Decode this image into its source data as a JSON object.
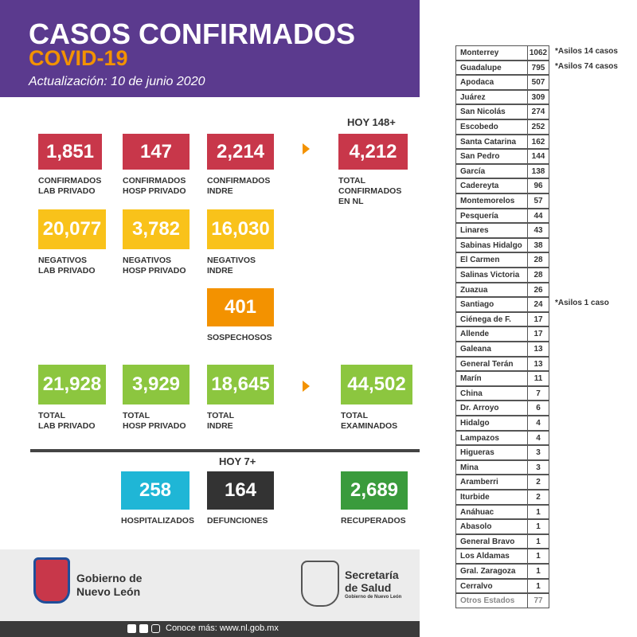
{
  "header": {
    "title": "CASOS CONFIRMADOS",
    "subtitle": "COVID-19",
    "update": "Actualización: 10 de junio 2020"
  },
  "headings": [
    "HOY 148+",
    "HOY 7+"
  ],
  "stats": [
    {
      "value": "1,851",
      "label": [
        "CONFIRMADOS",
        "LAB PRIVADO"
      ]
    },
    {
      "value": "147",
      "label": [
        "CONFIRMADOS",
        "HOSP PRIVADO"
      ]
    },
    {
      "value": "2,214",
      "label": [
        "CONFIRMADOS",
        "INDRE"
      ]
    },
    {
      "value": "4,212",
      "label": [
        "TOTAL",
        "CONFIRMADOS",
        "EN NL"
      ]
    },
    {
      "value": "20,077",
      "label": [
        "NEGATIVOS",
        "LAB PRIVADO"
      ]
    },
    {
      "value": "3,782",
      "label": [
        "NEGATIVOS",
        "HOSP PRIVADO"
      ]
    },
    {
      "value": "16,030",
      "label": [
        "NEGATIVOS",
        "INDRE"
      ]
    },
    {
      "value": "401",
      "label": [
        "SOSPECHOSOS"
      ]
    },
    {
      "value": "21,928",
      "label": [
        "TOTAL",
        "LAB PRIVADO"
      ]
    },
    {
      "value": "3,929",
      "label": [
        "TOTAL",
        "HOSP PRIVADO"
      ]
    },
    {
      "value": "18,645",
      "label": [
        "TOTAL",
        "INDRE"
      ]
    },
    {
      "value": "44,502",
      "label": [
        "TOTAL",
        "EXAMINADOS"
      ]
    },
    {
      "value": "258",
      "label": [
        "HOSPITALIZADOS"
      ]
    },
    {
      "value": "164",
      "label": [
        "DEFUNCIONES"
      ]
    },
    {
      "value": "2,689",
      "label": [
        "RECUPERADOS"
      ]
    }
  ],
  "table": {
    "rows": [
      [
        "Monterrey",
        1062,
        "*Asilos 14 casos"
      ],
      [
        "Guadalupe",
        795,
        "*Asilos 74 casos"
      ],
      [
        "Apodaca",
        507
      ],
      [
        "Juárez",
        309
      ],
      [
        "San Nicolás",
        274
      ],
      [
        "Escobedo",
        252
      ],
      [
        "Santa Catarina",
        162
      ],
      [
        "San Pedro",
        144
      ],
      [
        "García",
        138
      ],
      [
        "Cadereyta",
        96
      ],
      [
        "Montemorelos",
        57
      ],
      [
        "Pesquería",
        44
      ],
      [
        "Linares",
        43
      ],
      [
        "Sabinas Hidalgo",
        38
      ],
      [
        "El Carmen",
        28
      ],
      [
        "Salinas Victoria",
        28
      ],
      [
        "Zuazua",
        26
      ],
      [
        "Santiago",
        24,
        "*Asilos 1 caso"
      ],
      [
        "Ciénega de F.",
        17
      ],
      [
        "Allende",
        17
      ],
      [
        "Galeana",
        13
      ],
      [
        "General Terán",
        13
      ],
      [
        "Marín",
        11
      ],
      [
        "China",
        7
      ],
      [
        "Dr. Arroyo",
        6
      ],
      [
        "Hidalgo",
        4
      ],
      [
        "Lampazos",
        4
      ],
      [
        "Higueras",
        3
      ],
      [
        "Mina",
        3
      ],
      [
        "Aramberri",
        2
      ],
      [
        "Iturbide",
        2
      ],
      [
        "Anáhuac",
        1
      ],
      [
        "Abasolo",
        1
      ],
      [
        "General Bravo",
        1
      ],
      [
        "Los Aldamas",
        1
      ],
      [
        "Gral. Zaragoza",
        1
      ],
      [
        "Cerralvo",
        1
      ],
      [
        "Otros Estados",
        77
      ]
    ]
  },
  "footer": {
    "gobierno": [
      "Gobierno de",
      "Nuevo León"
    ],
    "secretaria": [
      "Secretaría",
      "de Salud"
    ],
    "secretaria_sub": "Gobierno de Nuevo León",
    "link": "Conoce más: www.nl.gob.mx"
  }
}
